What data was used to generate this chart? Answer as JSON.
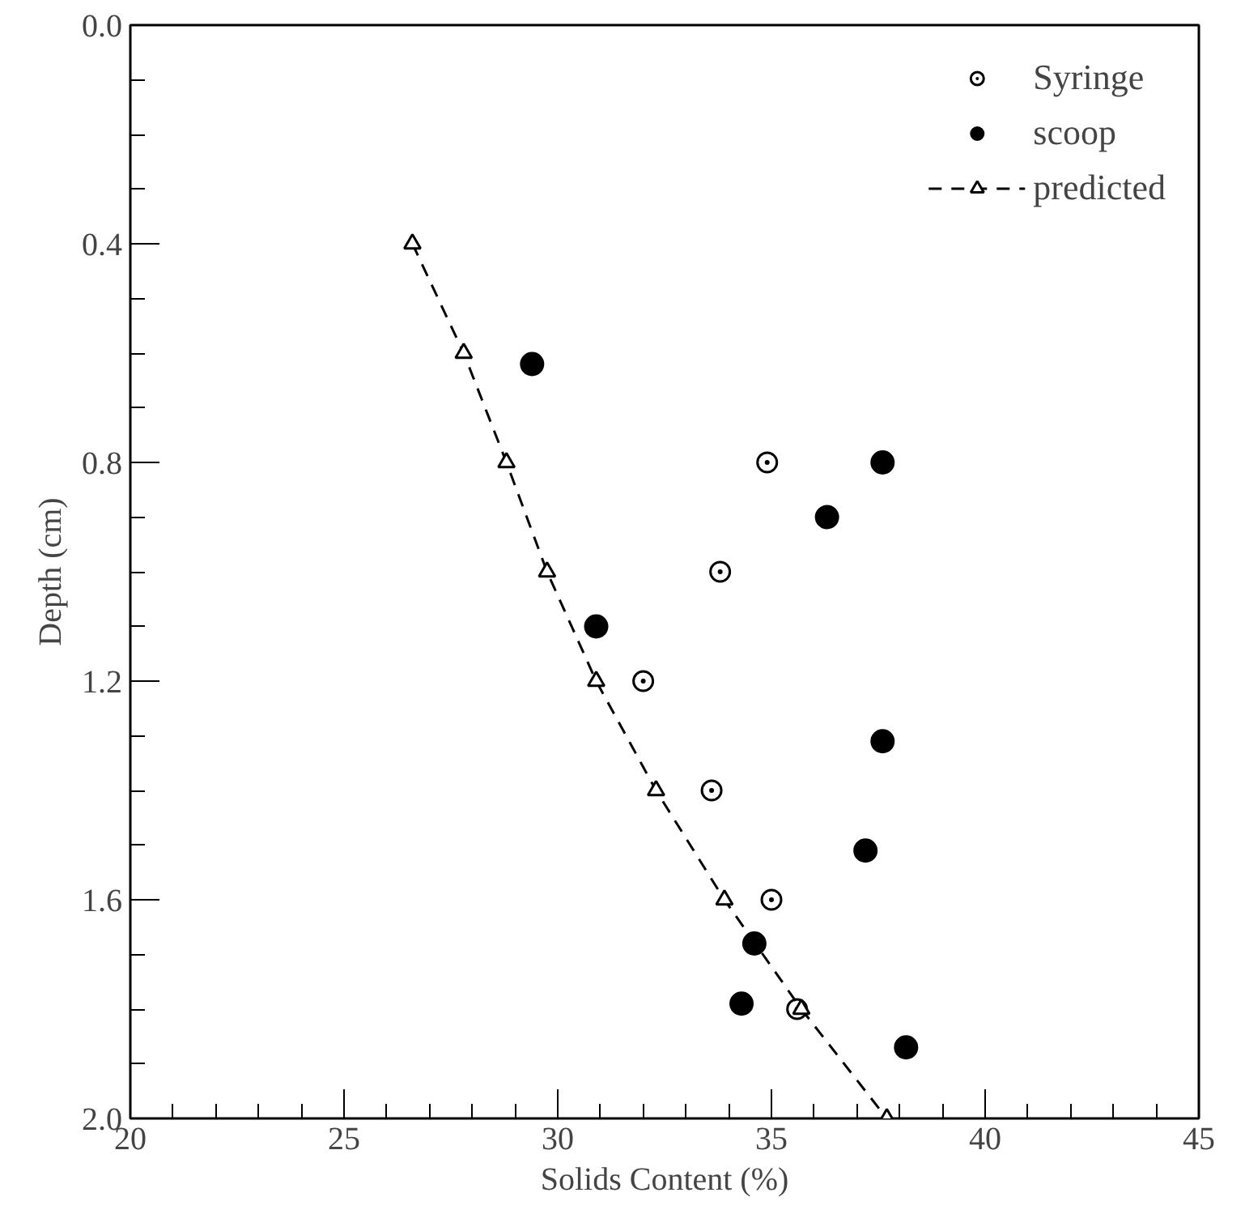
{
  "chart_data": {
    "type": "scatter",
    "xlabel": "Solids Content (%)",
    "ylabel": "Depth (cm)",
    "xlim": [
      20,
      45
    ],
    "ylim": [
      2.0,
      0.0
    ],
    "xticks": [
      20,
      {
        "value": 21,
        "label": null
      },
      {
        "value": 22,
        "label": null
      },
      {
        "value": 23,
        "label": null
      },
      {
        "value": 24,
        "label": null
      },
      25,
      {
        "value": 26,
        "label": null
      },
      {
        "value": 27,
        "label": null
      },
      {
        "value": 28,
        "label": null
      },
      {
        "value": 29,
        "label": null
      },
      30,
      {
        "value": 31,
        "label": null
      },
      {
        "value": 32,
        "label": null
      },
      {
        "value": 33,
        "label": null
      },
      {
        "value": 34,
        "label": null
      },
      35,
      {
        "value": 36,
        "label": null
      },
      {
        "value": 37,
        "label": null
      },
      {
        "value": 38,
        "label": null
      },
      {
        "value": 39,
        "label": null
      },
      40,
      {
        "value": 41,
        "label": null
      },
      {
        "value": 42,
        "label": null
      },
      {
        "value": 43,
        "label": null
      },
      {
        "value": 44,
        "label": null
      },
      45
    ],
    "yticks": [
      {
        "value": 0,
        "label": "0.0"
      },
      {
        "value": 0.1,
        "label": null
      },
      {
        "value": 0.2,
        "label": null
      },
      {
        "value": 0.3,
        "label": null
      },
      0.4,
      {
        "value": 0.5,
        "label": null
      },
      {
        "value": 0.6,
        "label": null
      },
      {
        "value": 0.7,
        "label": null
      },
      0.8,
      {
        "value": 0.9,
        "label": null
      },
      {
        "value": 1.0,
        "label": null
      },
      {
        "value": 1.1,
        "label": null
      },
      1.2,
      {
        "value": 1.3,
        "label": null
      },
      {
        "value": 1.4,
        "label": null
      },
      {
        "value": 1.5,
        "label": null
      },
      1.6,
      {
        "value": 1.7,
        "label": null
      },
      {
        "value": 1.8,
        "label": null
      },
      {
        "value": 1.9,
        "label": null
      },
      {
        "value": 2.0,
        "label": "2.0"
      }
    ],
    "grid": false,
    "legend": "top right",
    "series": [
      {
        "name": "Syringe",
        "color": "#000000",
        "marker": "circle_dot",
        "x": [
          34.9,
          33.8,
          32.0,
          33.6,
          35.0,
          35.6
        ],
        "values": [
          0.8,
          1.0,
          1.2,
          1.4,
          1.6,
          1.8
        ]
      },
      {
        "name": "scoop",
        "color": "#000000",
        "marker": "circle",
        "x": [
          29.4,
          37.6,
          36.3,
          30.9,
          37.6,
          37.2,
          34.6,
          34.3,
          38.15
        ],
        "values": [
          0.62,
          0.8,
          0.9,
          1.1,
          1.31,
          1.51,
          1.68,
          1.79,
          1.87
        ]
      },
      {
        "name": "predicted",
        "type": "line",
        "line_style": "dashed",
        "color": "#000000",
        "marker": "triangle",
        "x": [
          26.6,
          27.8,
          28.8,
          29.75,
          30.9,
          32.3,
          33.9,
          35.7,
          37.7
        ],
        "values": [
          0.4,
          0.6,
          0.8,
          1.0,
          1.2,
          1.4,
          1.6,
          1.8,
          2.0
        ]
      }
    ]
  }
}
